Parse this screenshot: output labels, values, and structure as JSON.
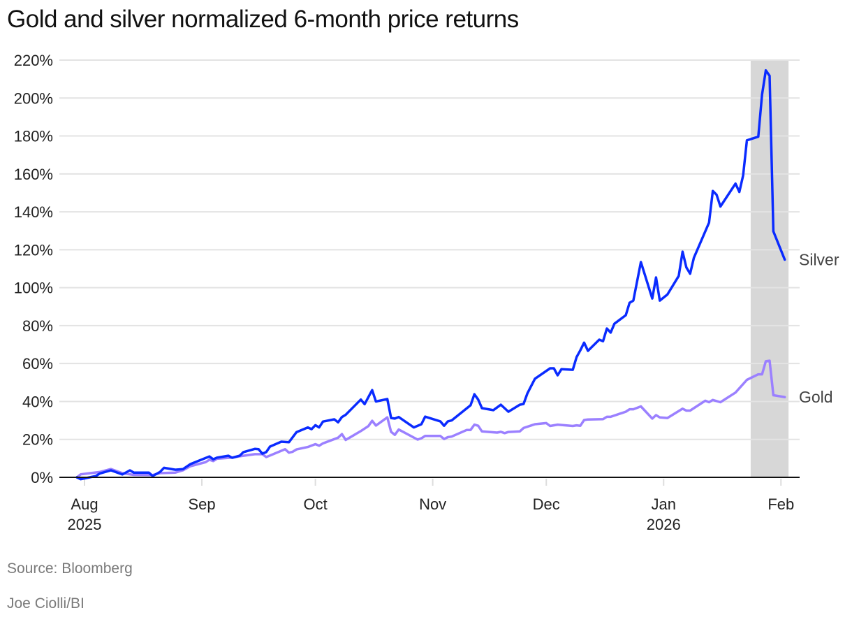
{
  "chart_data": {
    "type": "line",
    "title": "Gold and silver normalized 6-month price returns",
    "xlabel": "",
    "ylabel": "",
    "ylim": [
      0,
      220
    ],
    "y_ticks": [
      "0%",
      "20%",
      "40%",
      "60%",
      "80%",
      "100%",
      "120%",
      "140%",
      "160%",
      "180%",
      "200%",
      "220%"
    ],
    "y_tick_values": [
      0,
      20,
      40,
      60,
      80,
      100,
      120,
      140,
      160,
      180,
      200,
      220
    ],
    "x_ticks": [
      {
        "date": "2025-08-01",
        "label": "Aug",
        "year": "2025"
      },
      {
        "date": "2025-09-01",
        "label": "Sep",
        "year": ""
      },
      {
        "date": "2025-10-01",
        "label": "Oct",
        "year": ""
      },
      {
        "date": "2025-11-01",
        "label": "Nov",
        "year": ""
      },
      {
        "date": "2025-12-01",
        "label": "Dec",
        "year": ""
      },
      {
        "date": "2026-01-01",
        "label": "Jan",
        "year": "2026"
      },
      {
        "date": "2026-02-01",
        "label": "Feb",
        "year": ""
      }
    ],
    "grid": true,
    "highlight_range": [
      "2026-01-24",
      "2026-02-03"
    ],
    "series": [
      {
        "name": "Silver",
        "color": "#0a2bff",
        "points": [
          [
            "2025-07-30",
            0
          ],
          [
            "2025-07-31",
            -1
          ],
          [
            "2025-08-04",
            0.7
          ],
          [
            "2025-08-05",
            2
          ],
          [
            "2025-08-08",
            3.7
          ],
          [
            "2025-08-11",
            1.5
          ],
          [
            "2025-08-13",
            3.7
          ],
          [
            "2025-08-14",
            2.5
          ],
          [
            "2025-08-18",
            2.5
          ],
          [
            "2025-08-19",
            0.7
          ],
          [
            "2025-08-21",
            2.9
          ],
          [
            "2025-08-22",
            5
          ],
          [
            "2025-08-25",
            4
          ],
          [
            "2025-08-27",
            4.3
          ],
          [
            "2025-08-29",
            7
          ],
          [
            "2025-09-03",
            11
          ],
          [
            "2025-09-04",
            9.5
          ],
          [
            "2025-09-05",
            10.4
          ],
          [
            "2025-09-08",
            11.4
          ],
          [
            "2025-09-09",
            10.3
          ],
          [
            "2025-09-11",
            11.4
          ],
          [
            "2025-09-12",
            13.3
          ],
          [
            "2025-09-15",
            15
          ],
          [
            "2025-09-16",
            14.8
          ],
          [
            "2025-09-17",
            12.5
          ],
          [
            "2025-09-18",
            13.3
          ],
          [
            "2025-09-19",
            16.2
          ],
          [
            "2025-09-22",
            18.8
          ],
          [
            "2025-09-24",
            18.5
          ],
          [
            "2025-09-26",
            23.8
          ],
          [
            "2025-09-29",
            26.3
          ],
          [
            "2025-09-30",
            25.4
          ],
          [
            "2025-10-01",
            27.5
          ],
          [
            "2025-10-02",
            26.3
          ],
          [
            "2025-10-03",
            29.4
          ],
          [
            "2025-10-06",
            30.6
          ],
          [
            "2025-10-07",
            29
          ],
          [
            "2025-10-08",
            31.8
          ],
          [
            "2025-10-09",
            33
          ],
          [
            "2025-10-13",
            41
          ],
          [
            "2025-10-14",
            38.6
          ],
          [
            "2025-10-16",
            46
          ],
          [
            "2025-10-17",
            40
          ],
          [
            "2025-10-20",
            41.3
          ],
          [
            "2025-10-21",
            31.3
          ],
          [
            "2025-10-22",
            31
          ],
          [
            "2025-10-23",
            31.8
          ],
          [
            "2025-10-27",
            26.3
          ],
          [
            "2025-10-29",
            28
          ],
          [
            "2025-10-30",
            32
          ],
          [
            "2025-11-03",
            29.5
          ],
          [
            "2025-11-04",
            27.2
          ],
          [
            "2025-11-05",
            29.5
          ],
          [
            "2025-11-06",
            30
          ],
          [
            "2025-11-11",
            38
          ],
          [
            "2025-11-12",
            43.8
          ],
          [
            "2025-11-13",
            41
          ],
          [
            "2025-11-14",
            36.5
          ],
          [
            "2025-11-17",
            35.4
          ],
          [
            "2025-11-19",
            38.3
          ],
          [
            "2025-11-21",
            34.6
          ],
          [
            "2025-11-24",
            38.3
          ],
          [
            "2025-11-25",
            38.7
          ],
          [
            "2025-11-26",
            44.2
          ],
          [
            "2025-11-28",
            52
          ],
          [
            "2025-12-02",
            57.5
          ],
          [
            "2025-12-03",
            57.5
          ],
          [
            "2025-12-04",
            53.8
          ],
          [
            "2025-12-05",
            57
          ],
          [
            "2025-12-08",
            56.7
          ],
          [
            "2025-12-09",
            63.4
          ],
          [
            "2025-12-10",
            67
          ],
          [
            "2025-12-11",
            71
          ],
          [
            "2025-12-12",
            66.7
          ],
          [
            "2025-12-15",
            72.6
          ],
          [
            "2025-12-16",
            71.8
          ],
          [
            "2025-12-17",
            78.5
          ],
          [
            "2025-12-18",
            76.3
          ],
          [
            "2025-12-19",
            81
          ],
          [
            "2025-12-22",
            85.5
          ],
          [
            "2025-12-23",
            92
          ],
          [
            "2025-12-24",
            93.2
          ],
          [
            "2025-12-26",
            113.5
          ],
          [
            "2025-12-29",
            94.3
          ],
          [
            "2025-12-30",
            105.4
          ],
          [
            "2025-12-31",
            93.2
          ],
          [
            "2026-01-02",
            96.4
          ],
          [
            "2026-01-05",
            106.2
          ],
          [
            "2026-01-06",
            119
          ],
          [
            "2026-01-07",
            110.7
          ],
          [
            "2026-01-08",
            107.4
          ],
          [
            "2026-01-09",
            115.8
          ],
          [
            "2026-01-13",
            134.3
          ],
          [
            "2026-01-14",
            151
          ],
          [
            "2026-01-15",
            149
          ],
          [
            "2026-01-16",
            142.8
          ],
          [
            "2026-01-20",
            154.9
          ],
          [
            "2026-01-21",
            150.5
          ],
          [
            "2026-01-22",
            159.2
          ],
          [
            "2026-01-23",
            177.7
          ],
          [
            "2026-01-26",
            179.6
          ],
          [
            "2026-01-27",
            201.8
          ],
          [
            "2026-01-28",
            214.6
          ],
          [
            "2026-01-29",
            211.7
          ],
          [
            "2026-01-30",
            129.7
          ],
          [
            "2026-02-02",
            114.8
          ]
        ]
      },
      {
        "name": "Gold",
        "color": "#9b80ff",
        "points": [
          [
            "2025-07-30",
            0
          ],
          [
            "2025-07-31",
            1.6
          ],
          [
            "2025-08-05",
            2.8
          ],
          [
            "2025-08-08",
            4.4
          ],
          [
            "2025-08-11",
            2.2
          ],
          [
            "2025-08-14",
            1.3
          ],
          [
            "2025-08-19",
            1.2
          ],
          [
            "2025-08-21",
            2.2
          ],
          [
            "2025-08-25",
            2.5
          ],
          [
            "2025-08-27",
            3.7
          ],
          [
            "2025-08-29",
            5.9
          ],
          [
            "2025-09-02",
            8
          ],
          [
            "2025-09-03",
            9.3
          ],
          [
            "2025-09-04",
            8.6
          ],
          [
            "2025-09-05",
            9.8
          ],
          [
            "2025-09-09",
            10.4
          ],
          [
            "2025-09-11",
            11.1
          ],
          [
            "2025-09-15",
            12.2
          ],
          [
            "2025-09-17",
            12.2
          ],
          [
            "2025-09-18",
            10.7
          ],
          [
            "2025-09-23",
            14.8
          ],
          [
            "2025-09-24",
            13
          ],
          [
            "2025-09-25",
            13.5
          ],
          [
            "2025-09-26",
            14.7
          ],
          [
            "2025-09-29",
            16
          ],
          [
            "2025-10-01",
            17.5
          ],
          [
            "2025-10-02",
            16.7
          ],
          [
            "2025-10-03",
            17.9
          ],
          [
            "2025-10-07",
            20.9
          ],
          [
            "2025-10-08",
            22.8
          ],
          [
            "2025-10-09",
            19.7
          ],
          [
            "2025-10-13",
            24.4
          ],
          [
            "2025-10-15",
            27
          ],
          [
            "2025-10-16",
            29.8
          ],
          [
            "2025-10-17",
            27.3
          ],
          [
            "2025-10-20",
            31.6
          ],
          [
            "2025-10-21",
            24
          ],
          [
            "2025-10-22",
            22.4
          ],
          [
            "2025-10-23",
            25.2
          ],
          [
            "2025-10-28",
            19.9
          ],
          [
            "2025-10-29",
            20.6
          ],
          [
            "2025-10-30",
            21.8
          ],
          [
            "2025-11-03",
            21.8
          ],
          [
            "2025-11-04",
            20.2
          ],
          [
            "2025-11-05",
            21.2
          ],
          [
            "2025-11-06",
            21.5
          ],
          [
            "2025-11-10",
            25
          ],
          [
            "2025-11-11",
            25
          ],
          [
            "2025-11-12",
            27.8
          ],
          [
            "2025-11-13",
            27.2
          ],
          [
            "2025-11-14",
            24.2
          ],
          [
            "2025-11-18",
            23.6
          ],
          [
            "2025-11-19",
            24
          ],
          [
            "2025-11-20",
            23.3
          ],
          [
            "2025-11-21",
            23.9
          ],
          [
            "2025-11-24",
            24.2
          ],
          [
            "2025-11-25",
            26
          ],
          [
            "2025-11-28",
            28
          ],
          [
            "2025-12-01",
            28.6
          ],
          [
            "2025-12-02",
            27.1
          ],
          [
            "2025-12-04",
            27.8
          ],
          [
            "2025-12-08",
            27.1
          ],
          [
            "2025-12-09",
            27.4
          ],
          [
            "2025-12-10",
            27.2
          ],
          [
            "2025-12-11",
            30.2
          ],
          [
            "2025-12-12",
            30.5
          ],
          [
            "2025-12-16",
            30.7
          ],
          [
            "2025-12-17",
            31.9
          ],
          [
            "2025-12-18",
            31.9
          ],
          [
            "2025-12-22",
            34.6
          ],
          [
            "2025-12-23",
            35.9
          ],
          [
            "2025-12-24",
            35.9
          ],
          [
            "2025-12-26",
            37.4
          ],
          [
            "2025-12-29",
            31
          ],
          [
            "2025-12-30",
            32.8
          ],
          [
            "2025-12-31",
            31.6
          ],
          [
            "2026-01-02",
            31.3
          ],
          [
            "2026-01-06",
            36.2
          ],
          [
            "2026-01-07",
            35.2
          ],
          [
            "2026-01-08",
            35.2
          ],
          [
            "2026-01-12",
            40.4
          ],
          [
            "2026-01-13",
            39.6
          ],
          [
            "2026-01-14",
            40.8
          ],
          [
            "2026-01-16",
            39.6
          ],
          [
            "2026-01-20",
            44.7
          ],
          [
            "2026-01-23",
            51.4
          ],
          [
            "2026-01-26",
            54.3
          ],
          [
            "2026-01-27",
            54.3
          ],
          [
            "2026-01-28",
            61.2
          ],
          [
            "2026-01-29",
            61.5
          ],
          [
            "2026-01-30",
            43.3
          ],
          [
            "2026-02-02",
            42.3
          ]
        ]
      }
    ]
  },
  "footer": {
    "source": "Source: Bloomberg",
    "credit": "Joe Ciolli/BI"
  }
}
